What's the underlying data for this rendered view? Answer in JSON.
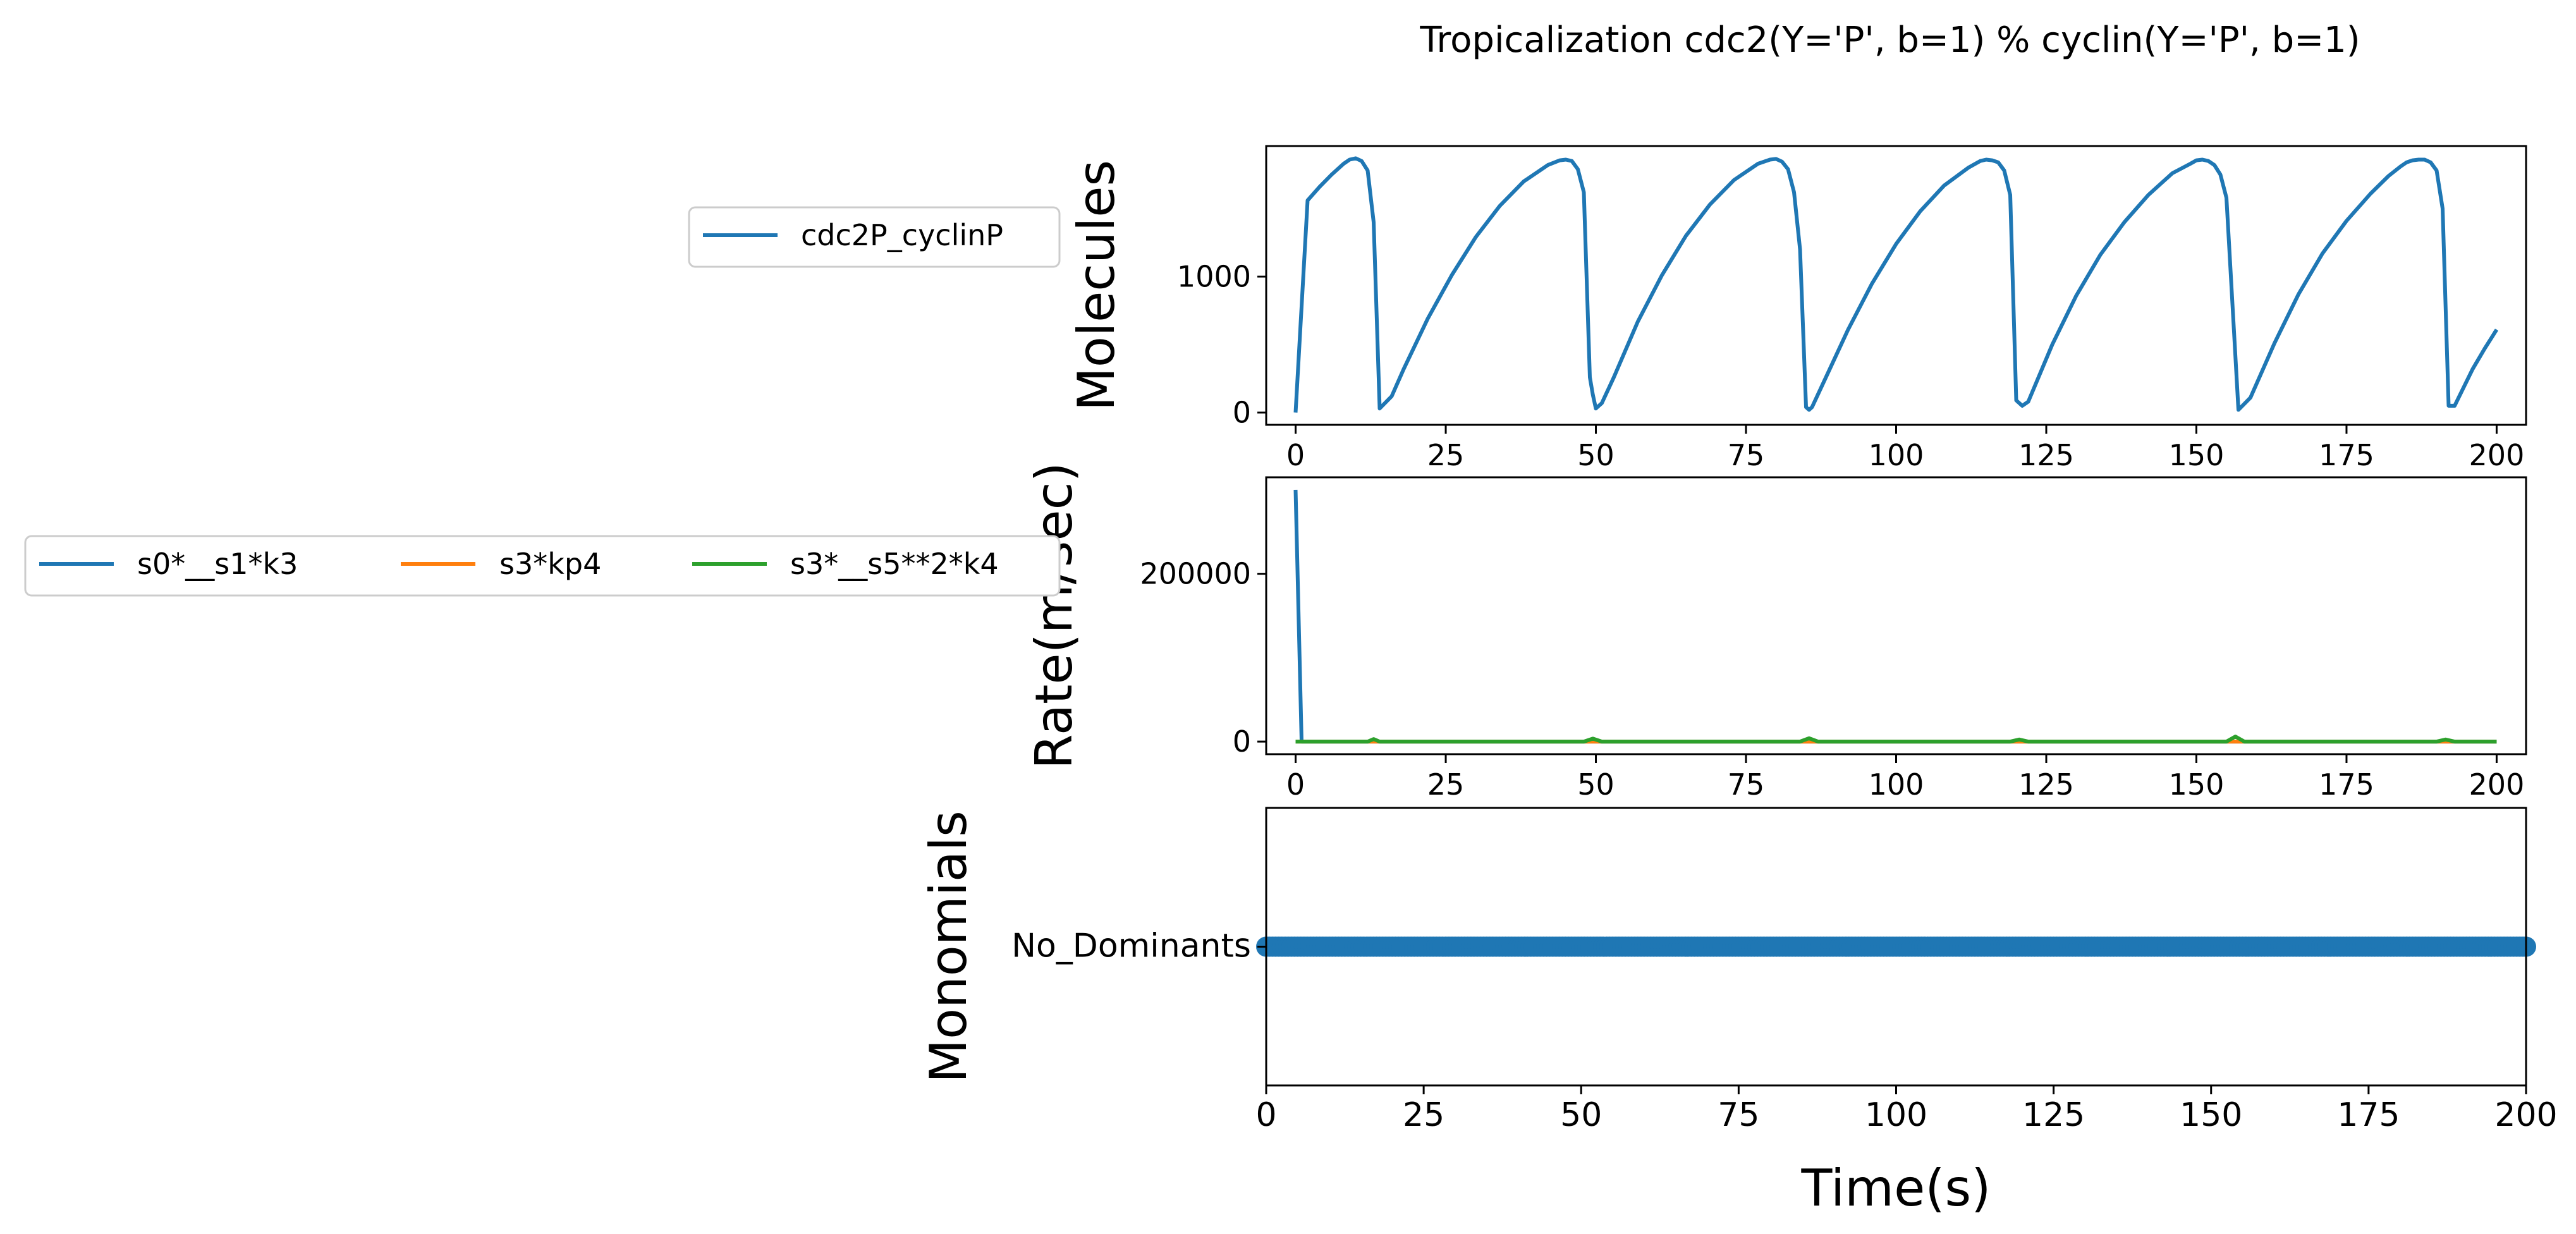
{
  "title": "Tropicalization cdc2(Y='P', b=1) % cyclin(Y='P', b=1)",
  "colors": {
    "blue": "#1f77b4",
    "orange": "#ff7f0e",
    "green": "#2ca02c"
  },
  "chart_data": [
    {
      "type": "line",
      "ylabel": "Molecules",
      "xlim": [
        -4.9,
        204.9
      ],
      "ylim": [
        -90,
        1960
      ],
      "xticks": [
        "0",
        "25",
        "50",
        "75",
        "100",
        "125",
        "150",
        "175",
        "200"
      ],
      "yticks": [
        "0",
        "1000"
      ],
      "legend": [
        "cdc2P_cyclinP"
      ],
      "series": [
        {
          "name": "cdc2P_cyclinP",
          "color": "#1f77b4",
          "x": [
            0,
            2,
            4,
            6,
            8,
            9,
            10,
            11,
            12,
            13,
            14,
            16,
            18,
            22,
            26,
            30,
            34,
            38,
            42,
            44,
            45,
            46,
            47,
            48,
            49,
            49.5,
            50,
            51,
            53,
            57,
            61,
            65,
            69,
            73,
            77,
            79,
            80,
            81,
            82,
            83,
            84,
            85,
            85.5,
            86,
            88,
            92,
            96,
            100,
            104,
            108,
            112,
            114,
            115,
            116,
            117,
            118,
            119,
            120,
            121,
            122,
            126,
            130,
            134,
            138,
            142,
            146,
            149,
            150,
            151,
            152,
            153,
            154,
            155,
            156,
            157,
            159,
            163,
            167,
            171,
            175,
            179,
            182,
            184,
            185,
            186,
            187,
            188,
            189,
            190,
            191,
            192,
            193,
            196,
            198,
            200
          ],
          "y": [
            0,
            1560,
            1660,
            1750,
            1830,
            1860,
            1870,
            1850,
            1780,
            1400,
            30,
            120,
            320,
            690,
            1010,
            1290,
            1520,
            1700,
            1820,
            1855,
            1860,
            1850,
            1790,
            1620,
            260,
            130,
            30,
            70,
            260,
            670,
            1010,
            1300,
            1530,
            1710,
            1830,
            1860,
            1865,
            1845,
            1790,
            1620,
            1200,
            40,
            20,
            40,
            230,
            610,
            950,
            1240,
            1480,
            1670,
            1800,
            1850,
            1860,
            1855,
            1840,
            1780,
            1600,
            90,
            50,
            80,
            500,
            860,
            1160,
            1400,
            1600,
            1760,
            1830,
            1855,
            1860,
            1850,
            1820,
            1750,
            1580,
            800,
            20,
            110,
            510,
            870,
            1170,
            1410,
            1610,
            1740,
            1810,
            1840,
            1855,
            1860,
            1860,
            1840,
            1780,
            1500,
            50,
            50,
            320,
            470,
            610
          ]
        }
      ]
    },
    {
      "type": "line",
      "ylabel": "Rate(m/sec)",
      "xlim": [
        -4.9,
        204.9
      ],
      "ylim": [
        -15000,
        315000
      ],
      "xticks": [
        "0",
        "25",
        "50",
        "75",
        "100",
        "125",
        "150",
        "175",
        "200"
      ],
      "yticks": [
        "0",
        "200000"
      ],
      "legend": [
        "s0*__s1*k3",
        "s3*kp4",
        "s3*__s5**2*k4"
      ],
      "series": [
        {
          "name": "s0*__s1*k3",
          "color": "#1f77b4",
          "x": [
            0,
            1,
            200
          ],
          "y": [
            300000,
            0,
            0
          ]
        },
        {
          "name": "s3*kp4",
          "color": "#ff7f0e",
          "x": [
            0,
            200
          ],
          "y": [
            0,
            0
          ]
        },
        {
          "name": "s3*__s5**2*k4",
          "color": "#2ca02c",
          "x": [
            0,
            12,
            13,
            14,
            48,
            49.5,
            51,
            84,
            85.5,
            87,
            119,
            120.5,
            122,
            155,
            156.5,
            158,
            190,
            191.5,
            193,
            200
          ],
          "y": [
            0,
            0,
            3000,
            0,
            0,
            3500,
            0,
            0,
            4000,
            0,
            0,
            2500,
            0,
            0,
            6000,
            0,
            0,
            2500,
            0,
            0
          ]
        }
      ]
    },
    {
      "type": "scatter",
      "ylabel": "Monomials",
      "xlabel": "Time(s)",
      "xlim": [
        0,
        200
      ],
      "xticks": [
        "0",
        "25",
        "50",
        "75",
        "100",
        "125",
        "150",
        "175",
        "200"
      ],
      "yticks": [
        "No_Dominants"
      ],
      "series": [
        {
          "name": "No_Dominants",
          "color": "#1f77b4",
          "x_range": [
            0,
            200
          ],
          "step": 0.5
        }
      ]
    }
  ]
}
